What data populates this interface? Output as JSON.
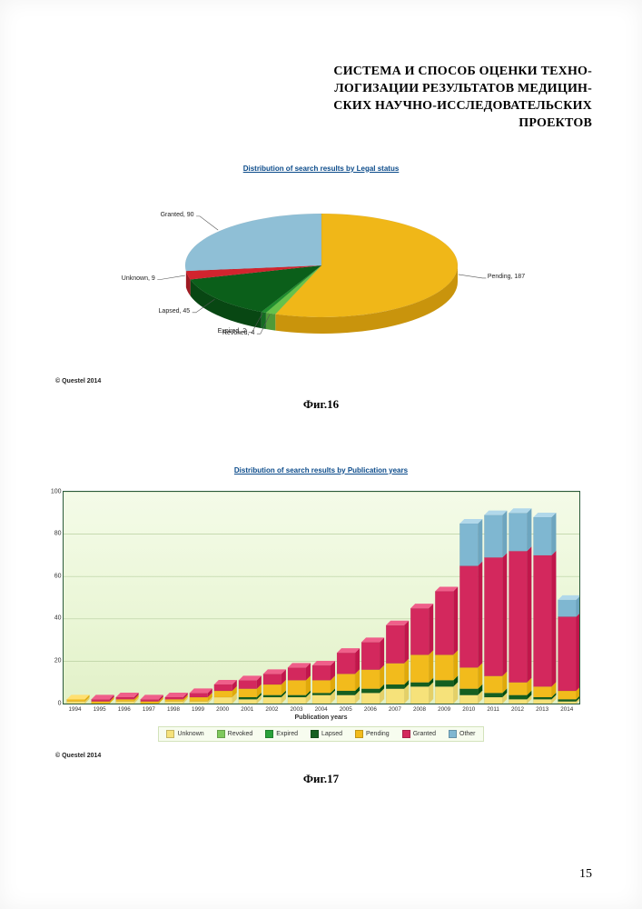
{
  "title_lines": [
    "СИСТЕМА И СПОСОБ ОЦЕНКИ ТЕХНО-",
    "ЛОГИЗАЦИИ РЕЗУЛЬТАТОВ МЕДИЦИН-",
    "СКИХ НАУЧНО-ИССЛЕДОВАТЕЛЬСКИХ",
    "ПРОЕКТОВ"
  ],
  "pie_chart": {
    "type": "pie",
    "title": "Distribution of search results by Legal status",
    "background_color": "#ffffff",
    "slices": [
      {
        "label": "Pending, 187",
        "value": 187,
        "color": "#f0b718",
        "side_color": "#c9940c"
      },
      {
        "label": "Revoked, 4",
        "value": 4,
        "color": "#66c24a",
        "side_color": "#4f9a38"
      },
      {
        "label": "Expired, 2",
        "value": 2,
        "color": "#1f8f2e",
        "side_color": "#156b22"
      },
      {
        "label": "Lapsed, 45",
        "value": 45,
        "color": "#0b5f1a",
        "side_color": "#084713"
      },
      {
        "label": "Unknown, 9",
        "value": 9,
        "color": "#d2242e",
        "side_color": "#9e1a22"
      },
      {
        "label": "Granted, 90",
        "value": 90,
        "color": "#8fbfd6",
        "side_color": "#6f9fb6"
      }
    ],
    "tilt_ratio": 0.38,
    "depth": 18,
    "label_font_size": 7
  },
  "bar_chart": {
    "type": "stacked_bar",
    "title": "Distribution of search results by Publication years",
    "xaxis_title": "Publication years",
    "categories": [
      "1994",
      "1995",
      "1996",
      "1997",
      "1998",
      "1999",
      "2000",
      "2001",
      "2002",
      "2003",
      "2004",
      "2005",
      "2006",
      "2007",
      "2008",
      "2009",
      "2010",
      "2011",
      "2012",
      "2013",
      "2014"
    ],
    "ylim": [
      0,
      100
    ],
    "ytick_step": 20,
    "grid_color": "#b8cfa0",
    "panel_bg_top": "#f4fbe8",
    "panel_bg_bottom": "#e2f1c8",
    "border_color": "#2a5a3a",
    "bar_width": 0.74,
    "series": [
      {
        "name": "Unknown",
        "color": "#f6e27a",
        "top": "#fff2b0"
      },
      {
        "name": "Revoked",
        "color": "#7fc95c",
        "top": "#a6e686"
      },
      {
        "name": "Expired",
        "color": "#2aa13a",
        "top": "#4dc55a"
      },
      {
        "name": "Lapsed",
        "color": "#155f20",
        "top": "#2a8236"
      },
      {
        "name": "Pending",
        "color": "#f2bb1c",
        "top": "#ffe071"
      },
      {
        "name": "Granted",
        "color": "#d3285d",
        "top": "#ef5f8a"
      },
      {
        "name": "Other",
        "color": "#7fb7d1",
        "top": "#b1d8ea"
      }
    ],
    "data": [
      [
        1,
        0,
        0,
        0,
        1,
        0,
        0
      ],
      [
        0,
        0,
        0,
        0,
        1,
        1,
        0
      ],
      [
        1,
        0,
        0,
        0,
        1,
        1,
        0
      ],
      [
        0,
        0,
        0,
        0,
        1,
        1,
        0
      ],
      [
        1,
        0,
        0,
        0,
        1,
        1,
        0
      ],
      [
        1,
        0,
        0,
        0,
        2,
        2,
        0
      ],
      [
        3,
        0,
        0,
        0,
        3,
        3,
        0
      ],
      [
        2,
        0,
        0,
        1,
        4,
        4,
        0
      ],
      [
        3,
        0,
        0,
        1,
        5,
        5,
        0
      ],
      [
        3,
        0,
        0,
        1,
        7,
        6,
        0
      ],
      [
        4,
        0,
        0,
        1,
        6,
        7,
        0
      ],
      [
        4,
        0,
        0,
        2,
        8,
        10,
        0
      ],
      [
        5,
        0,
        0,
        2,
        9,
        13,
        0
      ],
      [
        7,
        0,
        0,
        2,
        10,
        18,
        0
      ],
      [
        8,
        0,
        0,
        2,
        13,
        22,
        0
      ],
      [
        8,
        0,
        0,
        3,
        12,
        30,
        0
      ],
      [
        4,
        0,
        0,
        3,
        10,
        48,
        20
      ],
      [
        3,
        0,
        0,
        2,
        8,
        56,
        20
      ],
      [
        2,
        0,
        0,
        2,
        6,
        62,
        18
      ],
      [
        2,
        0,
        0,
        1,
        5,
        62,
        18
      ],
      [
        1,
        0,
        0,
        1,
        4,
        35,
        8
      ]
    ],
    "label_fontsize": 7
  },
  "fig16_caption": "Фиг.16",
  "fig17_caption": "Фиг.17",
  "copyright": "© Questel 2014",
  "page_number": "15"
}
